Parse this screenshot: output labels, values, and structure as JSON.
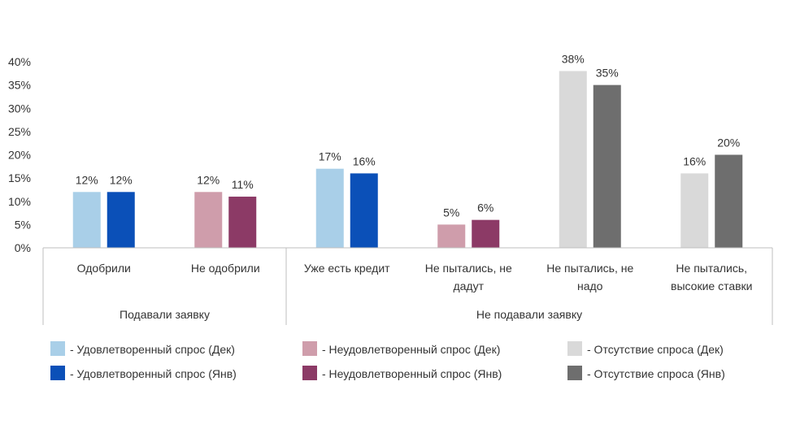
{
  "chart_data": {
    "type": "bar",
    "y_ticks": [
      "0%",
      "5%",
      "10%",
      "15%",
      "20%",
      "25%",
      "30%",
      "35%",
      "40%"
    ],
    "ylim": [
      0,
      40
    ],
    "value_suffix": "%",
    "grid": false,
    "legend_position": "bottom",
    "categories": [
      {
        "lines": [
          "Одобрили"
        ],
        "values": [
          12,
          12
        ],
        "series": [
          0,
          1
        ]
      },
      {
        "lines": [
          "Не одобрили"
        ],
        "values": [
          12,
          11
        ],
        "series": [
          2,
          3
        ]
      },
      {
        "lines": [
          "Уже есть кредит"
        ],
        "values": [
          17,
          16
        ],
        "series": [
          0,
          1
        ]
      },
      {
        "lines": [
          "Не пытались, не",
          "дадут"
        ],
        "values": [
          5,
          6
        ],
        "series": [
          2,
          3
        ]
      },
      {
        "lines": [
          "Не пытались, не",
          "надо"
        ],
        "values": [
          38,
          35
        ],
        "series": [
          4,
          5
        ]
      },
      {
        "lines": [
          "Не пытались,",
          "высокие ставки"
        ],
        "values": [
          16,
          20
        ],
        "series": [
          4,
          5
        ]
      }
    ],
    "groups": [
      {
        "label": "Подавали заявку",
        "categories": [
          0,
          1
        ]
      },
      {
        "label": "Не подавали заявку",
        "categories": [
          2,
          3,
          4,
          5
        ]
      }
    ],
    "series": [
      {
        "name": "- Удовлетворенный спрос (Дек)",
        "color": "#a9cfe8"
      },
      {
        "name": "- Удовлетворенный спрос (Янв)",
        "color": "#0b50b8"
      },
      {
        "name": "- Неудовлетворенный спрос (Дек)",
        "color": "#cf9dab"
      },
      {
        "name": "- Неудовлетворенный спрос (Янв)",
        "color": "#8c3a66"
      },
      {
        "name": "- Отсутствие спроса (Дек)",
        "color": "#d9d9d9"
      },
      {
        "name": "- Отсутствие спроса (Янв)",
        "color": "#6e6e6e"
      }
    ]
  }
}
